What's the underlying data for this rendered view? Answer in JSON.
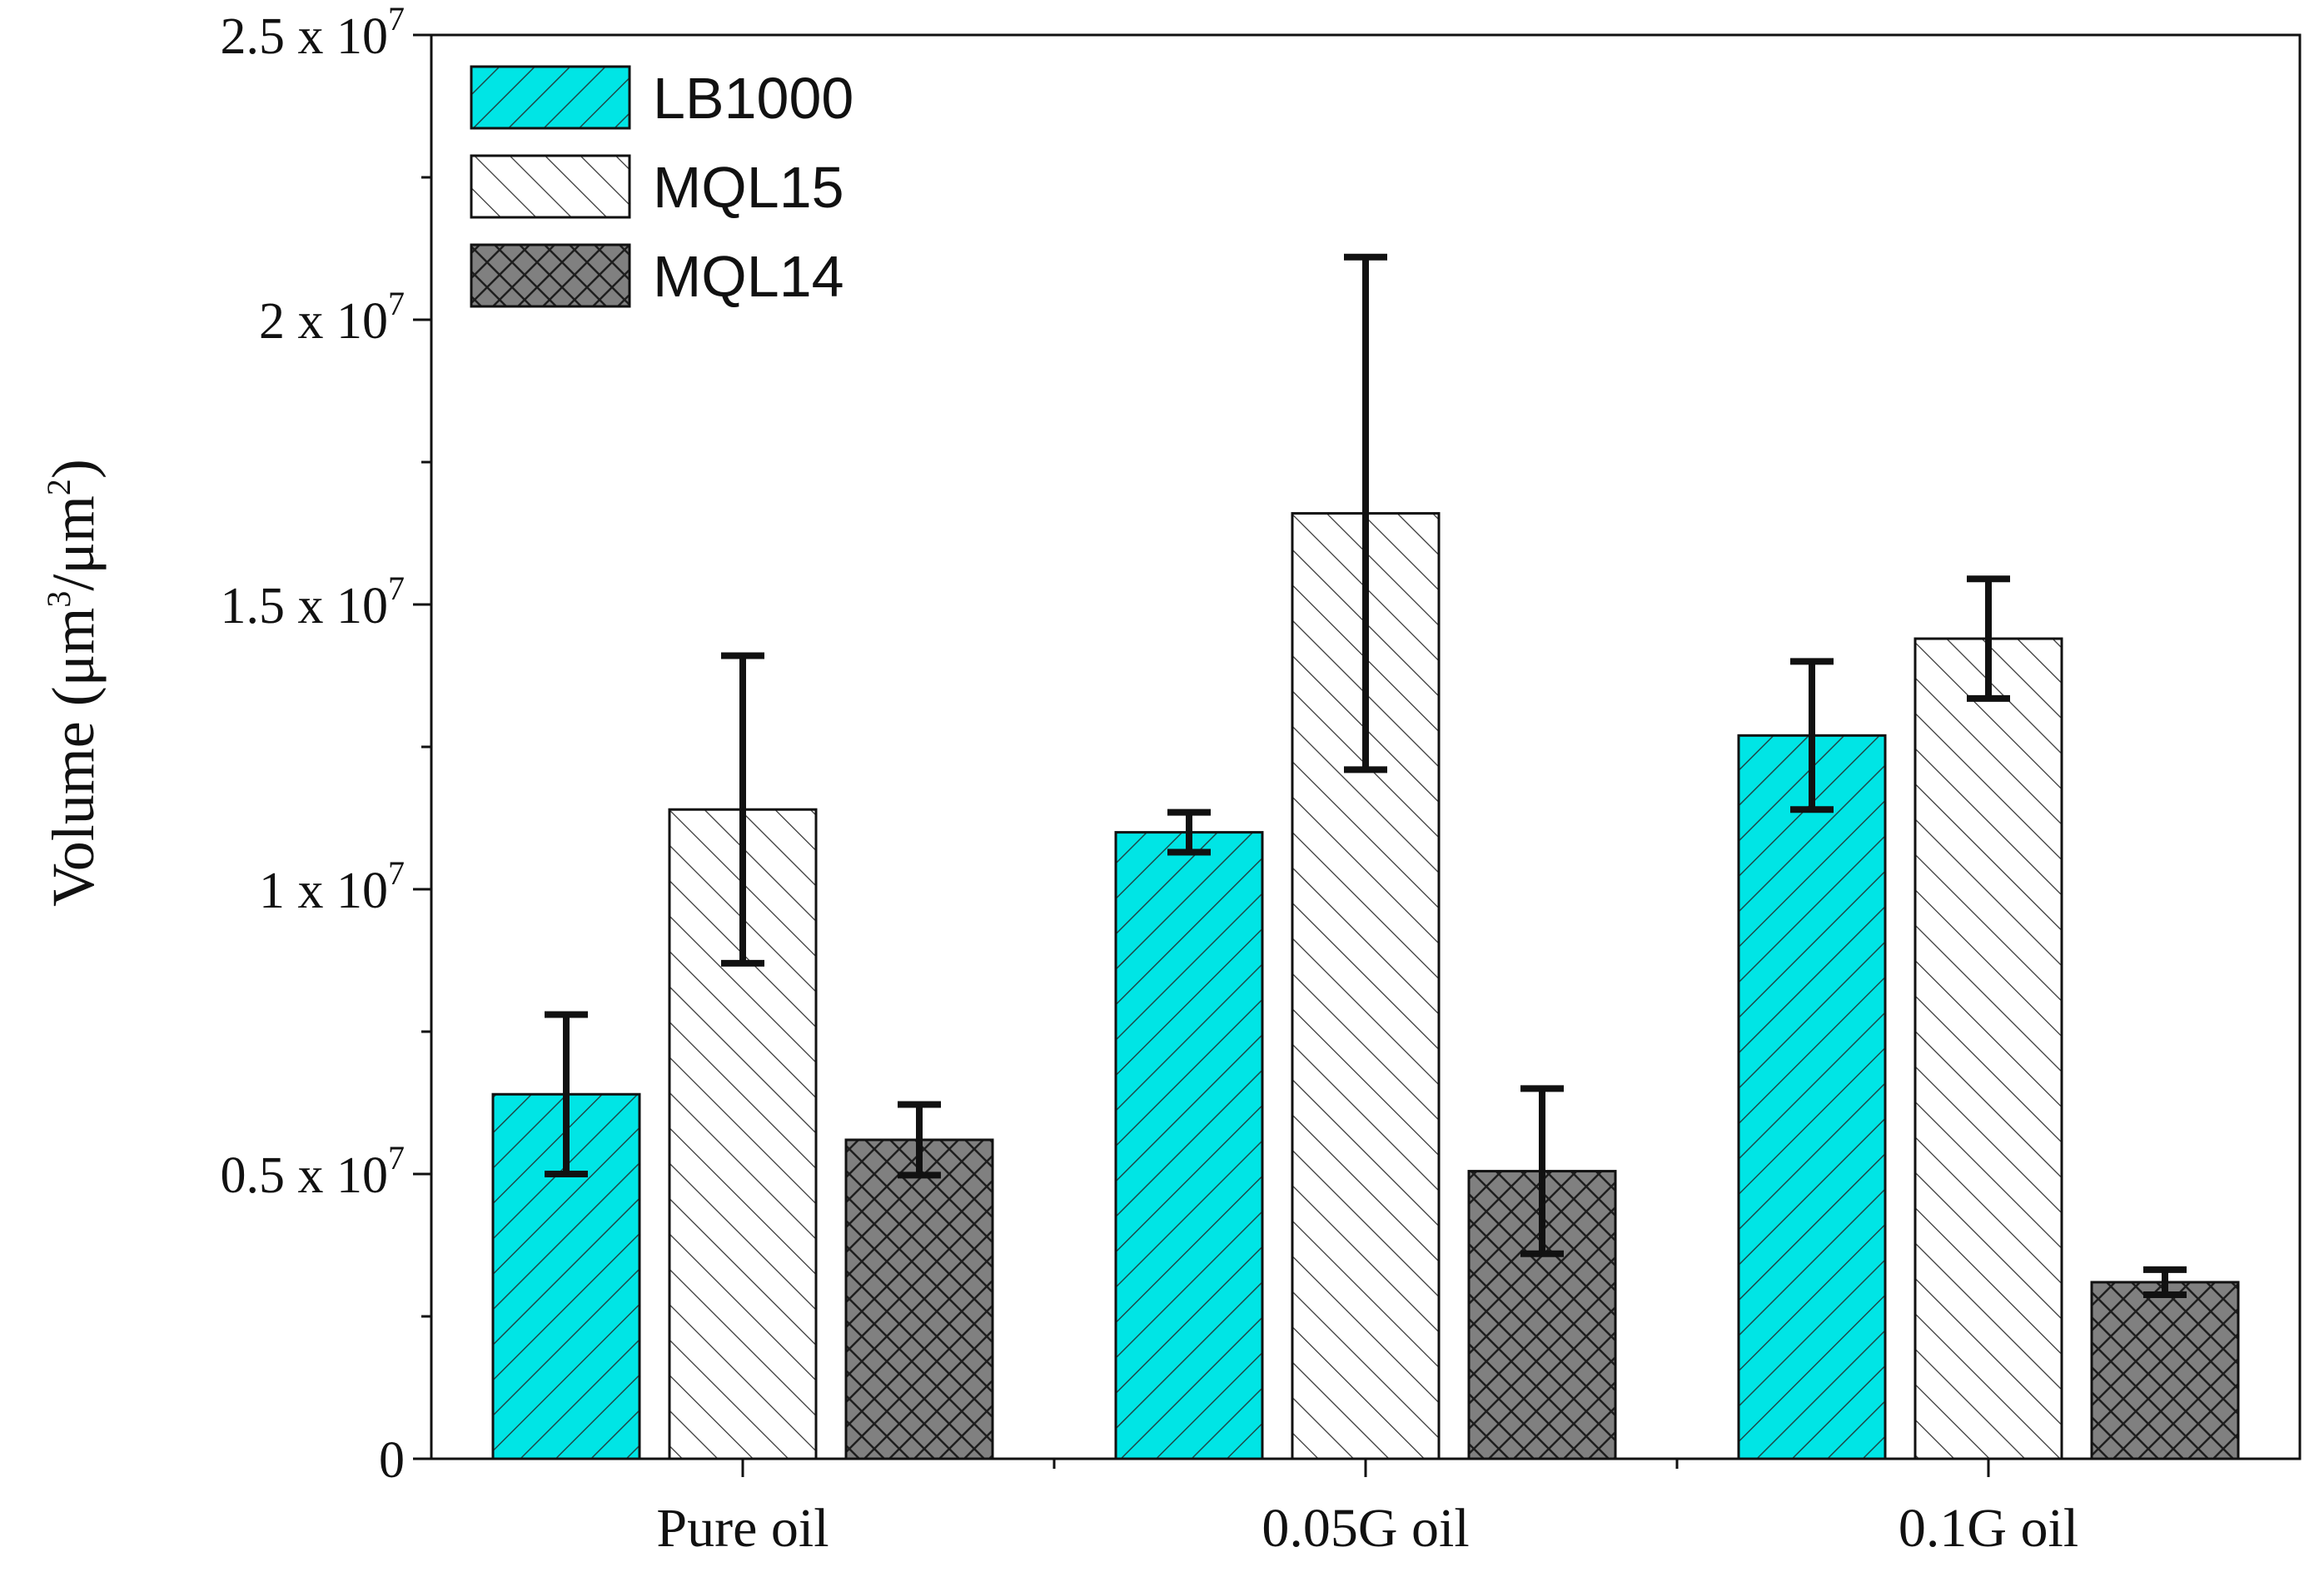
{
  "chart_data": {
    "type": "bar",
    "title": "",
    "xlabel": "",
    "ylabel": {
      "prefix": "Volume (μm",
      "sup1": "3",
      "middle": "/μm",
      "sup2": "2",
      "suffix": ")"
    },
    "ylim": [
      0,
      25000000
    ],
    "yticks": [
      {
        "value": 0,
        "mantissa": "0",
        "exp": ""
      },
      {
        "value": 5000000,
        "mantissa": "0.5 x 10",
        "exp": "7"
      },
      {
        "value": 10000000,
        "mantissa": "1 x 10",
        "exp": "7"
      },
      {
        "value": 15000000,
        "mantissa": "1.5 x 10",
        "exp": "7"
      },
      {
        "value": 20000000,
        "mantissa": "2 x 10",
        "exp": "7"
      },
      {
        "value": 25000000,
        "mantissa": "2.5 x 10",
        "exp": "7"
      }
    ],
    "categories": [
      "Pure oil",
      "0.05G oil",
      "0.1G oil"
    ],
    "legend_position": "top-left",
    "grid": false,
    "series": [
      {
        "name": "LB1000",
        "color": "#00e5e5",
        "pattern": "diag-forward",
        "values": [
          6400000,
          11000000,
          12700000
        ],
        "errors": [
          1400000,
          350000,
          1300000
        ]
      },
      {
        "name": "MQL15",
        "color": "#ffffff",
        "pattern": "diag-backward",
        "values": [
          11400000,
          16600000,
          14400000
        ],
        "errors": [
          2700000,
          4500000,
          1050000
        ]
      },
      {
        "name": "MQL14",
        "color": "#808080",
        "pattern": "crosshatch",
        "values": [
          5600000,
          5050000,
          3100000
        ],
        "errors": [
          620000,
          1450000,
          220000
        ]
      }
    ]
  }
}
